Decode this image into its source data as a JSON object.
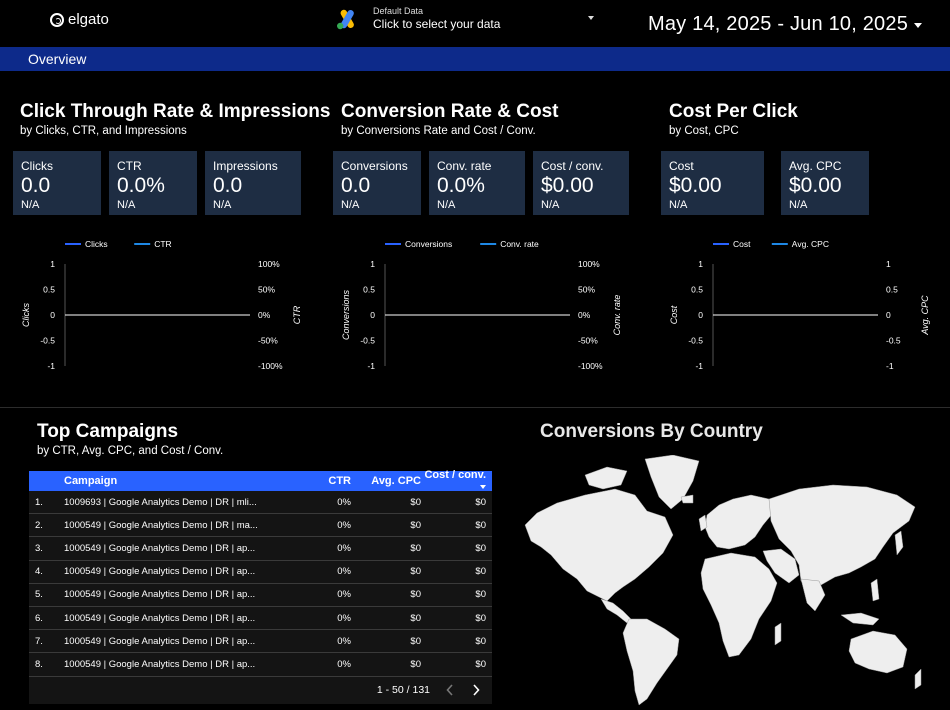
{
  "header": {
    "brand": "elgato",
    "data_source_small": "Default Data",
    "data_source_main": "Click to select your data",
    "date_range": "May 14, 2025 - Jun 10, 2025"
  },
  "nav": {
    "tab": "Overview",
    "accent": "#0d2a8a"
  },
  "sections": {
    "ctr": {
      "title": "Click Through Rate & Impressions",
      "subtitle": "by Clicks, CTR, and Impressions",
      "cards": [
        {
          "label": "Clicks",
          "value": "0.0",
          "delta": "N/A"
        },
        {
          "label": "CTR",
          "value": "0.0%",
          "delta": "N/A"
        },
        {
          "label": "Impressions",
          "value": "0.0",
          "delta": "N/A"
        }
      ]
    },
    "conv": {
      "title": "Conversion Rate & Cost",
      "subtitle": "by Conversions Rate and Cost / Conv.",
      "cards": [
        {
          "label": "Conversions",
          "value": "0.0",
          "delta": "N/A"
        },
        {
          "label": "Conv. rate",
          "value": "0.0%",
          "delta": "N/A"
        },
        {
          "label": "Cost / conv.",
          "value": "$0.00",
          "delta": "N/A"
        }
      ]
    },
    "cpc": {
      "title": "Cost Per Click",
      "subtitle": "by Cost, CPC",
      "cards": [
        {
          "label": "Cost",
          "value": "$0.00",
          "delta": "N/A"
        },
        {
          "label": "Avg. CPC",
          "value": "$0.00",
          "delta": "N/A"
        }
      ]
    },
    "campaigns": {
      "title": "Top Campaigns",
      "subtitle": "by CTR, Avg. CPC, and Cost / Conv."
    },
    "map": {
      "title": "Conversions By Country"
    }
  },
  "chart_data": [
    {
      "type": "line",
      "legend": [
        "Clicks",
        "CTR"
      ],
      "series_colors": [
        "#2962ff",
        "#1e88e5"
      ],
      "ylabel_left": "Clicks",
      "ylabel_right": "CTR",
      "left_ticks": [
        "1",
        "0.5",
        "0",
        "-0.5",
        "-1"
      ],
      "right_ticks": [
        "100%",
        "50%",
        "0%",
        "-50%",
        "-100%"
      ],
      "ylim": [
        -1,
        1
      ],
      "series": [
        {
          "name": "Clicks",
          "values": []
        },
        {
          "name": "CTR",
          "values": []
        }
      ]
    },
    {
      "type": "line",
      "legend": [
        "Conversions",
        "Conv. rate"
      ],
      "series_colors": [
        "#2962ff",
        "#1e88e5"
      ],
      "ylabel_left": "Conversions",
      "ylabel_right": "Conv. rate",
      "left_ticks": [
        "1",
        "0.5",
        "0",
        "-0.5",
        "-1"
      ],
      "right_ticks": [
        "100%",
        "50%",
        "0%",
        "-50%",
        "-100%"
      ],
      "ylim": [
        -1,
        1
      ],
      "series": [
        {
          "name": "Conversions",
          "values": []
        },
        {
          "name": "Conv. rate",
          "values": []
        }
      ]
    },
    {
      "type": "line",
      "legend": [
        "Cost",
        "Avg. CPC"
      ],
      "series_colors": [
        "#2962ff",
        "#1e88e5"
      ],
      "ylabel_left": "Cost",
      "ylabel_right": "Avg. CPC",
      "left_ticks": [
        "1",
        "0.5",
        "0",
        "-0.5",
        "-1"
      ],
      "right_ticks": [
        "1",
        "0.5",
        "0",
        "-0.5",
        "-1"
      ],
      "ylim": [
        -1,
        1
      ],
      "series": [
        {
          "name": "Cost",
          "values": []
        },
        {
          "name": "Avg. CPC",
          "values": []
        }
      ]
    }
  ],
  "table": {
    "columns": [
      "Campaign",
      "CTR",
      "Avg. CPC",
      "Cost / conv."
    ],
    "rows": [
      {
        "idx": "1.",
        "campaign": "1009693 | Google Analytics Demo | DR | mli...",
        "ctr": "0%",
        "cpc": "$0",
        "cost": "$0"
      },
      {
        "idx": "2.",
        "campaign": "1000549 | Google Analytics Demo | DR | ma...",
        "ctr": "0%",
        "cpc": "$0",
        "cost": "$0"
      },
      {
        "idx": "3.",
        "campaign": "1000549 | Google Analytics Demo | DR | ap...",
        "ctr": "0%",
        "cpc": "$0",
        "cost": "$0"
      },
      {
        "idx": "4.",
        "campaign": "1000549 | Google Analytics Demo | DR | ap...",
        "ctr": "0%",
        "cpc": "$0",
        "cost": "$0"
      },
      {
        "idx": "5.",
        "campaign": "1000549 | Google Analytics Demo | DR | ap...",
        "ctr": "0%",
        "cpc": "$0",
        "cost": "$0"
      },
      {
        "idx": "6.",
        "campaign": "1000549 | Google Analytics Demo | DR | ap...",
        "ctr": "0%",
        "cpc": "$0",
        "cost": "$0"
      },
      {
        "idx": "7.",
        "campaign": "1000549 | Google Analytics Demo | DR | ap...",
        "ctr": "0%",
        "cpc": "$0",
        "cost": "$0"
      },
      {
        "idx": "8.",
        "campaign": "1000549 | Google Analytics Demo | DR | ap...",
        "ctr": "0%",
        "cpc": "$0",
        "cost": "$0"
      }
    ],
    "pagination": "1 - 50 / 131",
    "header_color": "#2962ff"
  }
}
